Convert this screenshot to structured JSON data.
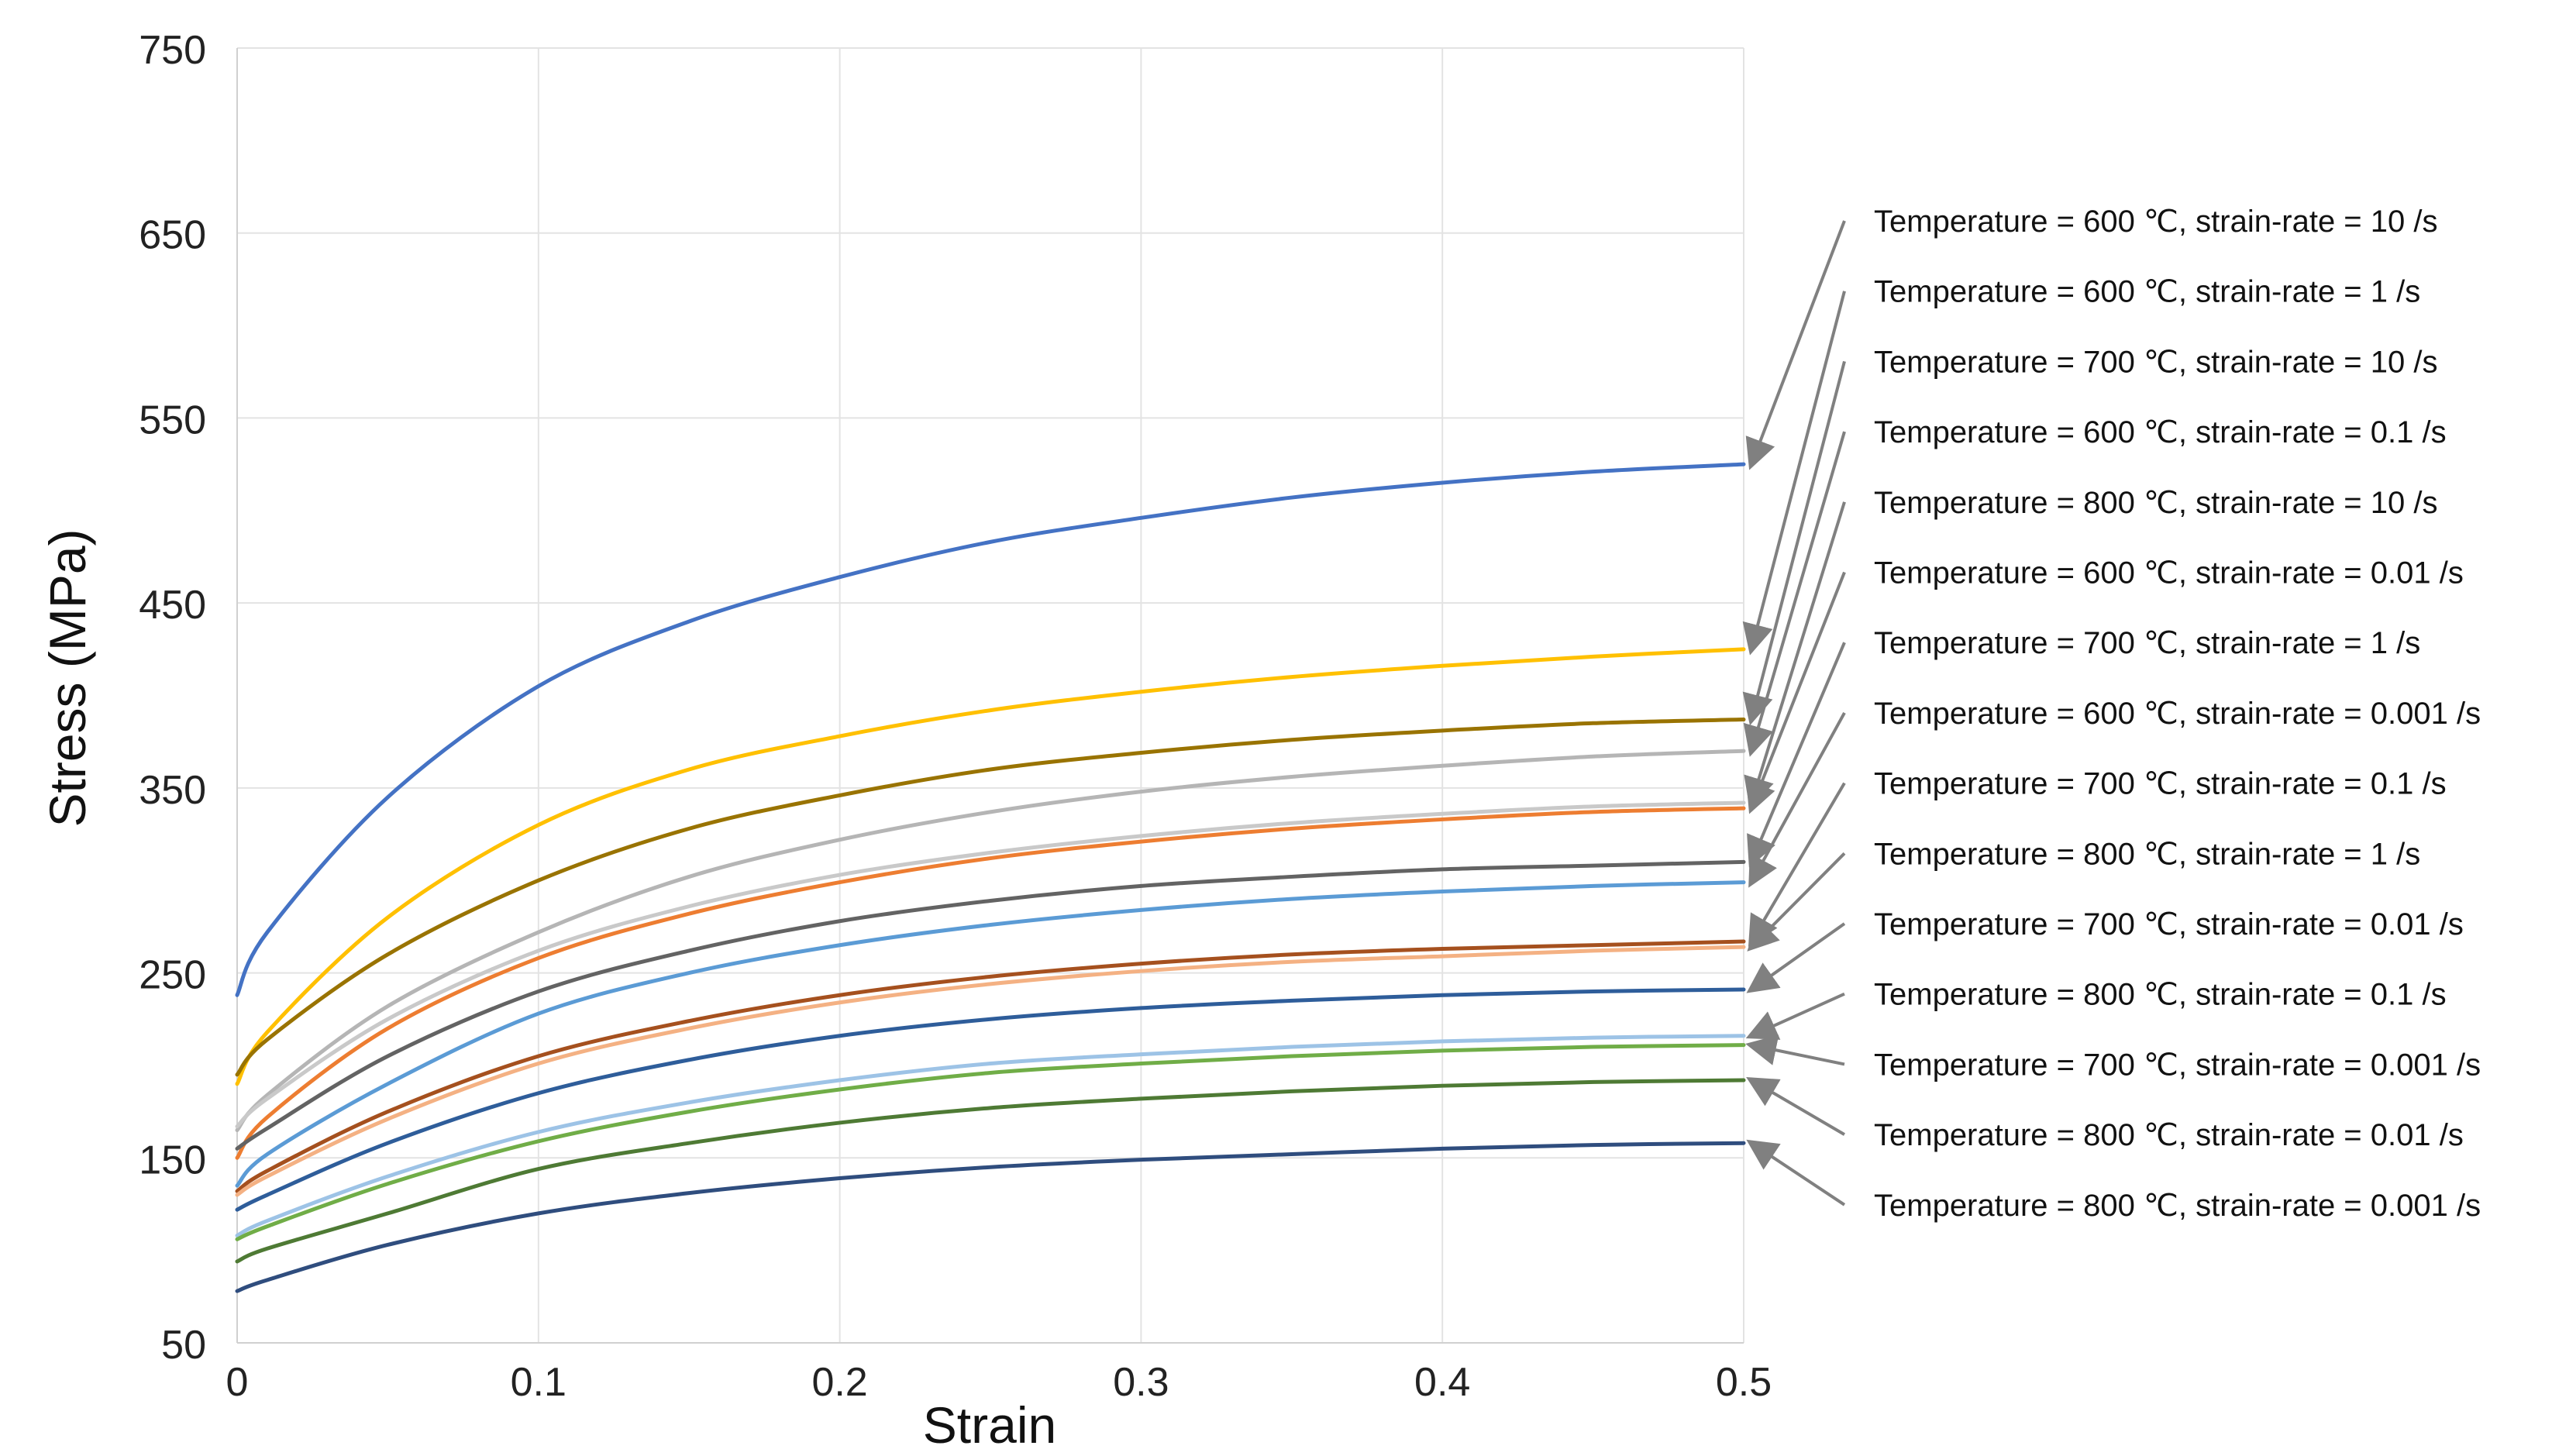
{
  "chart_data": {
    "type": "line",
    "title": "",
    "xlabel": "Strain",
    "ylabel": "Stress (MPa)",
    "xlim": [
      0,
      0.5
    ],
    "ylim": [
      50,
      750
    ],
    "x_ticks": [
      "0",
      "0.1",
      "0.2",
      "0.3",
      "0.4",
      "0.5"
    ],
    "y_ticks": [
      "50",
      "150",
      "250",
      "350",
      "450",
      "550",
      "650",
      "750"
    ],
    "grid": true,
    "legend_position": "right",
    "x": [
      0,
      0.01,
      0.05,
      0.1,
      0.15,
      0.2,
      0.25,
      0.3,
      0.35,
      0.4,
      0.45,
      0.5
    ],
    "series": [
      {
        "name": "Temperature  = 600 ℃,  strain-rate = 10 /s",
        "color": "#4472c4",
        "values": [
          238,
          272,
          345,
          405,
          440,
          464,
          483,
          496,
          507,
          515,
          521,
          525
        ]
      },
      {
        "name": "Temperature  = 600 ℃,  strain-rate = 1 /s",
        "color": "#ffc000",
        "values": [
          190,
          218,
          280,
          330,
          360,
          378,
          392,
          402,
          410,
          416,
          421,
          425
        ]
      },
      {
        "name": "Temperature  = 700 ℃,  strain-rate = 10 /s",
        "color": "#997300",
        "values": [
          195,
          214,
          260,
          300,
          328,
          346,
          360,
          369,
          376,
          381,
          385,
          387
        ]
      },
      {
        "name": "Temperature  = 600 ℃,  strain-rate = 0.1 /s",
        "color": "#b5b5b5",
        "values": [
          165,
          184,
          232,
          272,
          302,
          322,
          337,
          348,
          356,
          362,
          367,
          370
        ]
      },
      {
        "name": "Temperature  = 800 ℃,  strain-rate = 10 /s",
        "color": "#c9c9c9",
        "values": [
          167,
          182,
          225,
          262,
          286,
          303,
          315,
          324,
          331,
          336,
          340,
          342
        ]
      },
      {
        "name": "Temperature  = 600 ℃,  strain-rate = 0.01 /s",
        "color": "#ed7d31",
        "values": [
          150,
          172,
          220,
          258,
          282,
          299,
          312,
          321,
          328,
          333,
          337,
          339
        ]
      },
      {
        "name": "Temperature  = 700 ℃,  strain-rate = 1 /s",
        "color": "#636363",
        "values": [
          155,
          166,
          205,
          240,
          262,
          278,
          289,
          297,
          302,
          306,
          308,
          310
        ]
      },
      {
        "name": "Temperature  = 600 ℃,  strain-rate = 0.001 /s",
        "color": "#5b9bd5",
        "values": [
          135,
          152,
          190,
          228,
          250,
          265,
          276,
          284,
          290,
          294,
          297,
          299
        ]
      },
      {
        "name": "Temperature  = 700 ℃,  strain-rate = 0.1 /s",
        "color": "#a5501e",
        "values": [
          132,
          143,
          175,
          205,
          224,
          238,
          248,
          255,
          260,
          263,
          265,
          267
        ]
      },
      {
        "name": "Temperature  = 800 ℃,  strain-rate = 1 /s",
        "color": "#f4b183",
        "values": [
          130,
          140,
          171,
          201,
          220,
          234,
          244,
          251,
          256,
          259,
          262,
          264
        ]
      },
      {
        "name": "Temperature  = 700 ℃,  strain-rate = 0.01 /s",
        "color": "#2e5d9a",
        "values": [
          122,
          130,
          158,
          185,
          203,
          216,
          225,
          231,
          235,
          238,
          240,
          241
        ]
      },
      {
        "name": "Temperature  = 800 ℃,  strain-rate = 0.1 /s",
        "color": "#9dc3e6",
        "values": [
          108,
          116,
          140,
          164,
          180,
          192,
          201,
          206,
          210,
          213,
          215,
          216
        ]
      },
      {
        "name": "Temperature  = 700 ℃,  strain-rate = 0.001 /s",
        "color": "#70ad47",
        "values": [
          106,
          113,
          136,
          159,
          175,
          187,
          196,
          201,
          205,
          208,
          210,
          211
        ]
      },
      {
        "name": "Temperature  = 800 ℃,  strain-rate = 0.01 /s",
        "color": "#4e7a34",
        "values": [
          94,
          101,
          120,
          144,
          158,
          169,
          177,
          182,
          186,
          189,
          191,
          192
        ]
      },
      {
        "name": "Temperature  = 800 ℃,  strain-rate = 0.001 /s",
        "color": "#2f4d7e",
        "values": [
          78,
          84,
          103,
          120,
          131,
          139,
          145,
          149,
          152,
          155,
          157,
          158
        ]
      }
    ],
    "annotation_arrow_color": "#808080"
  }
}
